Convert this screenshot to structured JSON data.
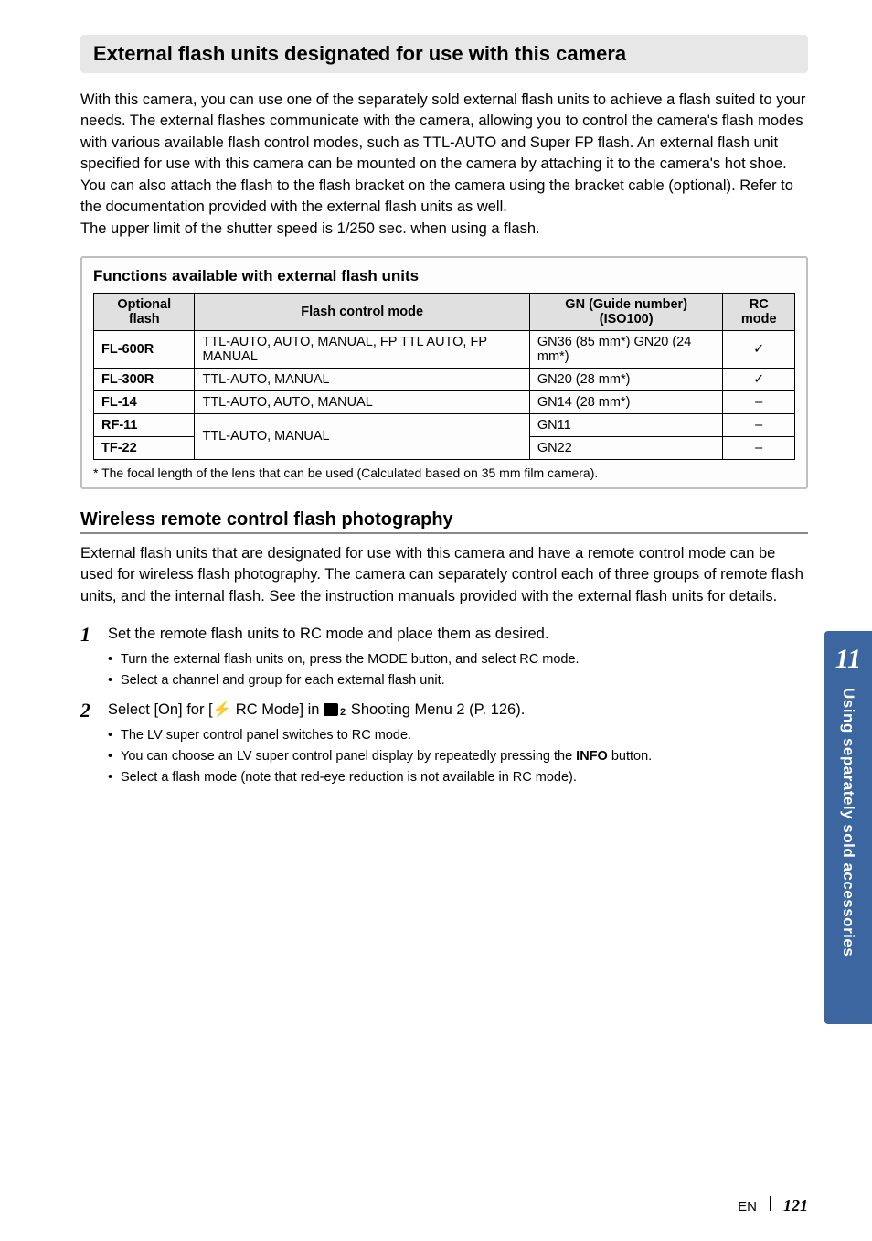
{
  "section_header": "External flash units designated for use with this camera",
  "intro_para": "With this camera, you can use one of the separately sold external flash units to achieve a flash suited to your needs. The external flashes communicate with the camera, allowing you to control the camera's flash modes with various available flash control modes, such as TTL-AUTO and Super FP flash. An external flash unit specified for use with this camera can be mounted on the camera by attaching it to the camera's hot shoe. You can also attach the flash to the flash bracket on the camera using the bracket cable (optional). Refer to the documentation provided with the external flash units as well.",
  "intro_line2": "The upper limit of the shutter speed is 1/250 sec. when using a flash.",
  "func_title": "Functions available with external flash units",
  "table": {
    "headers": {
      "c1": "Optional flash",
      "c2": "Flash control mode",
      "c3_pre": "GN (Guide number)",
      "c3_post": " (ISO100)",
      "c4": "RC mode"
    },
    "rows": [
      {
        "flash": "FL-600R",
        "mode": "TTL-AUTO, AUTO, MANUAL, FP TTL AUTO, FP MANUAL",
        "gn": "GN36 (85 mm*) GN20 (24 mm*)",
        "rc": "✓"
      },
      {
        "flash": "FL-300R",
        "mode": "TTL-AUTO, MANUAL",
        "gn": "GN20 (28 mm*)",
        "rc": "✓"
      },
      {
        "flash": "FL-14",
        "mode": "TTL-AUTO, AUTO, MANUAL",
        "gn": "GN14 (28 mm*)",
        "rc": "–"
      },
      {
        "flash": "RF-11",
        "mode": "TTL-AUTO, MANUAL",
        "gn": "GN11",
        "rc": "–"
      },
      {
        "flash": "TF-22",
        "mode": "",
        "gn": "GN22",
        "rc": "–"
      }
    ],
    "footnote": "* The focal length of the lens that can be used (Calculated based on 35 mm film camera)."
  },
  "subsection": "Wireless remote control flash photography",
  "sub_para": "External flash units that are designated for use with this camera and have a remote control mode can be used for wireless flash photography. The camera can separately control each of three groups of remote flash units, and the internal flash. See the instruction manuals provided with the external flash units for details.",
  "steps": {
    "s1": {
      "num": "1",
      "text": "Set the remote flash units to RC mode and place them as desired.",
      "bullets": [
        "Turn the external flash units on, press the MODE button, and select RC mode.",
        "Select a channel and group for each external flash unit."
      ]
    },
    "s2": {
      "num": "2",
      "pre": "Select [On] for [",
      "rc_label": " RC Mode] in ",
      "post": " Shooting Menu 2 (P. 126).",
      "bullets_pre": "The LV super control panel switches to RC mode.",
      "bullets_mid_pre": "You can choose an LV super control panel display by repeatedly pressing the ",
      "info_btn": "INFO",
      "bullets_mid_post": " button.",
      "bullets_last": "Select a flash mode (note that red-eye reduction is not available in RC mode)."
    }
  },
  "tab": {
    "num": "11",
    "text": "Using separately sold accessories"
  },
  "footer": {
    "lang": "EN",
    "page": "121"
  },
  "colors": {
    "tab_bg": "#3b66a0",
    "header_bg": "#e7e7e7",
    "table_th_bg": "#e0e0e0",
    "box_border": "#bfbfbf"
  }
}
